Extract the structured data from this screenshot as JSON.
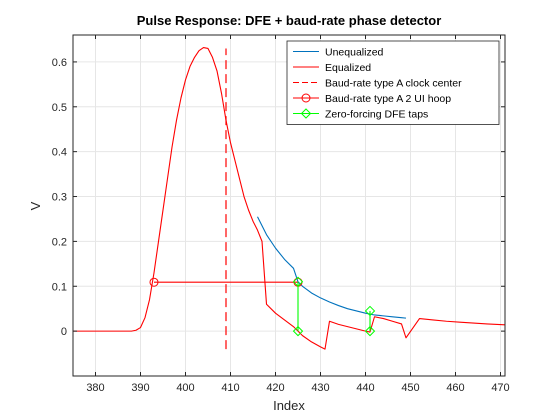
{
  "chart_data": {
    "type": "line",
    "title": "Pulse Response: DFE + baud-rate phase detector",
    "xlabel": "Index",
    "ylabel": "V",
    "xlim": [
      375,
      471
    ],
    "ylim": [
      -0.1,
      0.66
    ],
    "xticks": [
      380,
      390,
      400,
      410,
      420,
      430,
      440,
      450,
      460,
      470
    ],
    "yticks": [
      0,
      0.1,
      0.2,
      0.3,
      0.4,
      0.5,
      0.6
    ],
    "grid": true,
    "legend_position": "top-right",
    "series": [
      {
        "name": "Unequalized",
        "style": "line",
        "color": "#0072BD",
        "x": [
          416,
          418,
          420,
          422,
          424,
          425,
          426,
          428,
          430,
          432,
          434,
          436,
          438,
          440,
          442,
          444,
          446,
          448,
          449
        ],
        "y": [
          0.255,
          0.215,
          0.185,
          0.16,
          0.14,
          0.11,
          0.1,
          0.085,
          0.074,
          0.065,
          0.057,
          0.05,
          0.045,
          0.04,
          0.036,
          0.034,
          0.032,
          0.03,
          0.029
        ]
      },
      {
        "name": "Equalized",
        "style": "line",
        "color": "#FF0000",
        "x": [
          375,
          386,
          388,
          389,
          390,
          391,
          392,
          393,
          394,
          395,
          396,
          397,
          398,
          399,
          400,
          401,
          402,
          403,
          404,
          405,
          406,
          407,
          408,
          409,
          410,
          411,
          412,
          413,
          414,
          415,
          416,
          417,
          418,
          420,
          422,
          424,
          425,
          426,
          428,
          430,
          431,
          432,
          434,
          436,
          438,
          440,
          441,
          442,
          444,
          446,
          448,
          449,
          452,
          455,
          458,
          461,
          464,
          467,
          471
        ],
        "y": [
          0,
          0,
          0,
          0.002,
          0.008,
          0.03,
          0.07,
          0.13,
          0.2,
          0.27,
          0.34,
          0.41,
          0.47,
          0.52,
          0.56,
          0.59,
          0.61,
          0.625,
          0.632,
          0.63,
          0.61,
          0.58,
          0.53,
          0.47,
          0.42,
          0.38,
          0.34,
          0.3,
          0.27,
          0.245,
          0.225,
          0.2,
          0.06,
          0.04,
          0.025,
          0.01,
          0,
          -0.01,
          -0.024,
          -0.035,
          -0.04,
          0.022,
          0.015,
          0.01,
          0.005,
          0,
          -0.002,
          0.032,
          0.028,
          0.022,
          0.016,
          -0.015,
          0.028,
          0.025,
          0.022,
          0.02,
          0.018,
          0.016,
          0.014
        ]
      },
      {
        "name": "Baud-rate type A clock center",
        "style": "dashed",
        "color": "#FF0000",
        "x": [
          409,
          409
        ],
        "y": [
          -0.04,
          0.63
        ]
      },
      {
        "name": "Baud-rate type A 2 UI hoop",
        "style": "line-circle",
        "color": "#FF0000",
        "x": [
          393,
          425
        ],
        "y": [
          0.109,
          0.109
        ]
      },
      {
        "name": "Zero-forcing DFE taps",
        "style": "line-diamond",
        "color": "#00FF00",
        "segments": [
          {
            "x": [
              425,
              425
            ],
            "y": [
              0.11,
              0.0
            ]
          },
          {
            "x": [
              441,
              441
            ],
            "y": [
              0.045,
              0.0
            ]
          }
        ]
      }
    ]
  }
}
